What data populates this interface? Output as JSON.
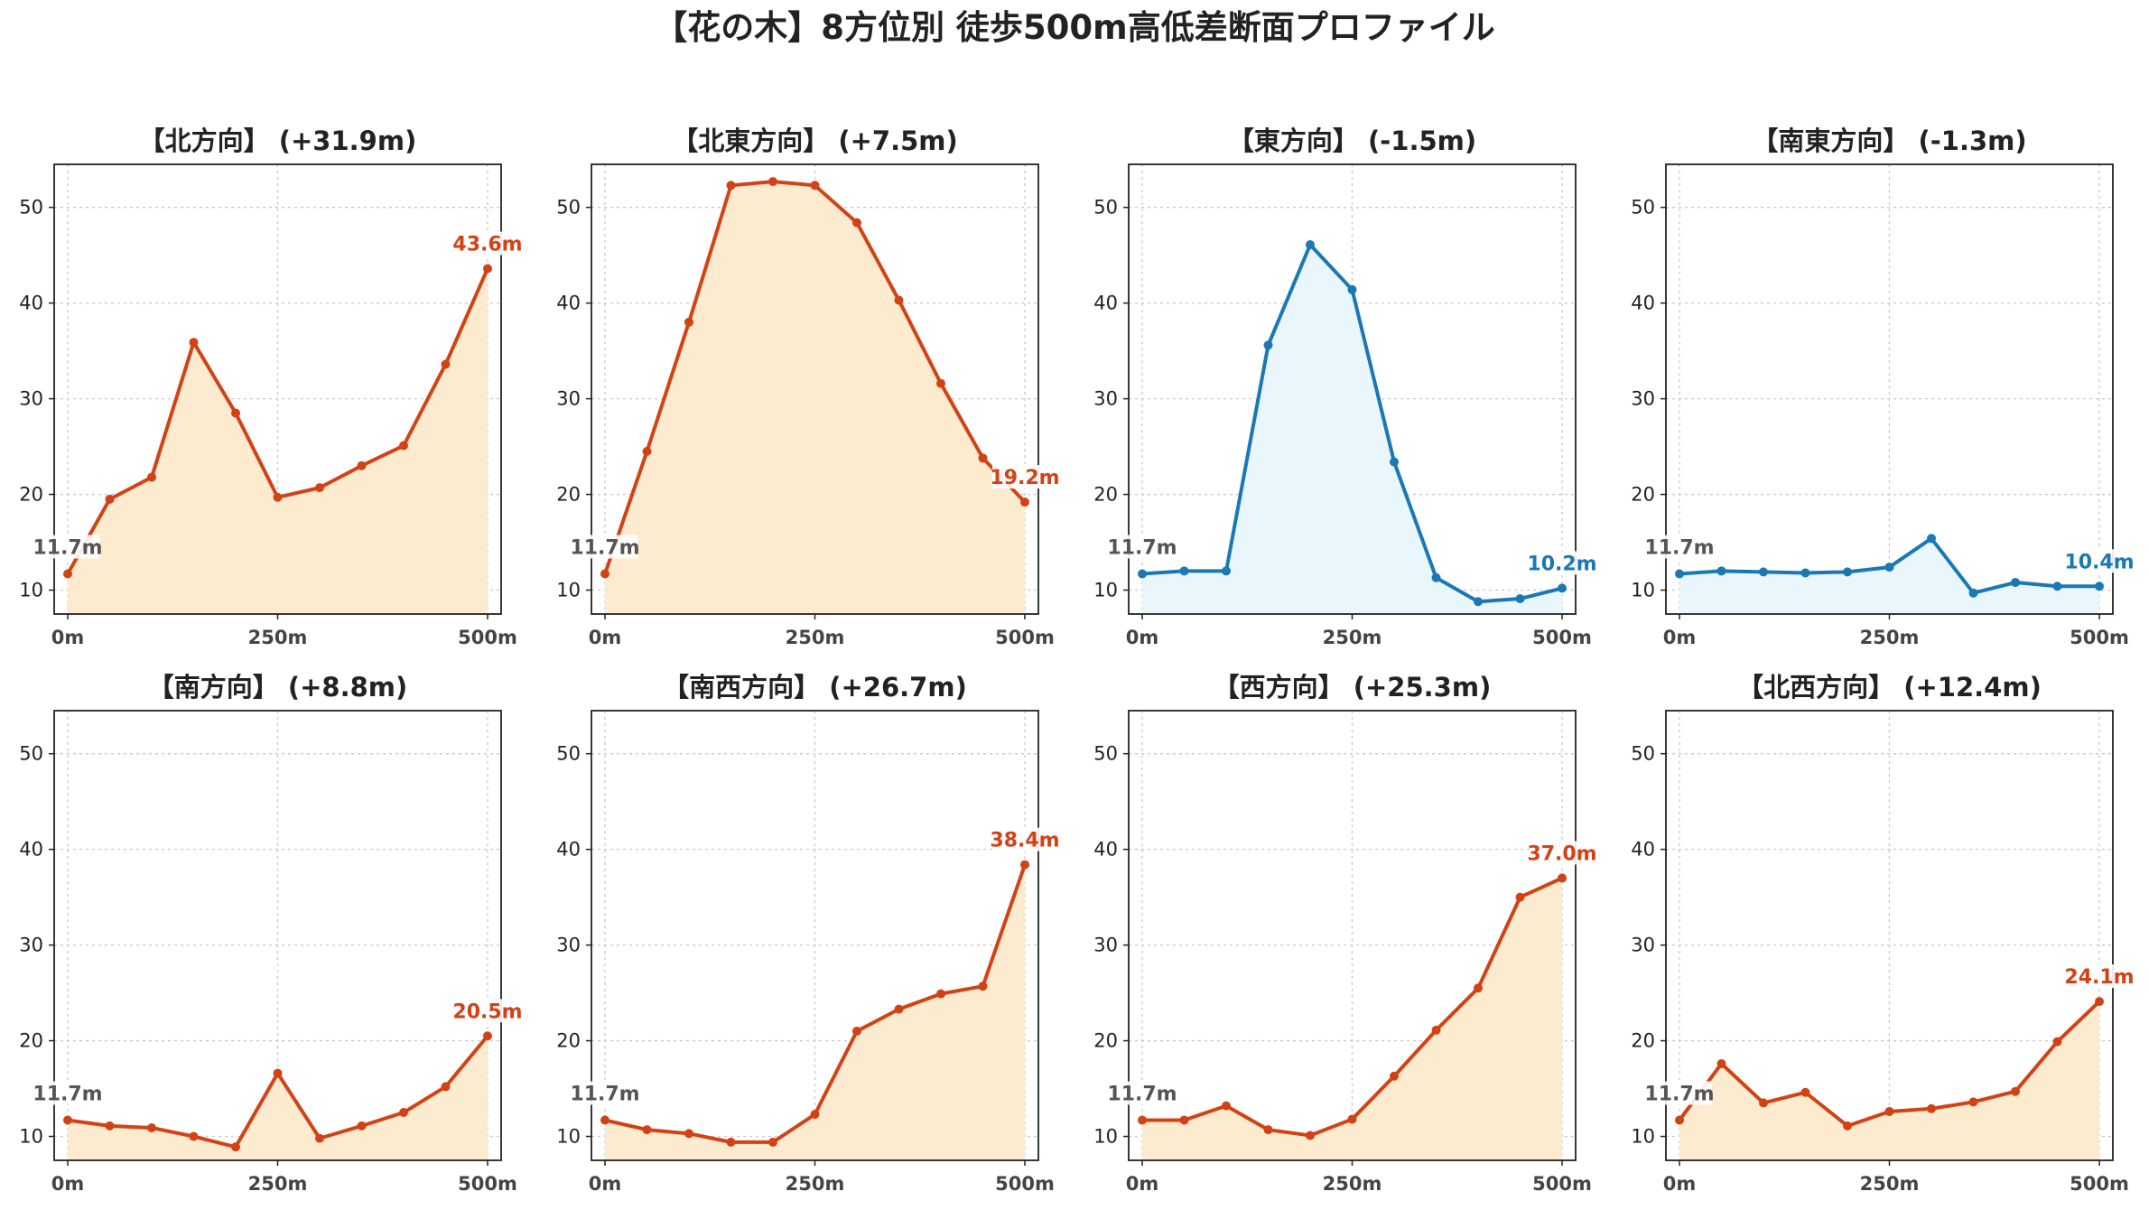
{
  "title": "【花の木】8方位別 徒歩500m高低差断面プロファイル",
  "colors": {
    "up_line": "#d24215",
    "up_fill": "#fdebd0",
    "down_line": "#1a78b5",
    "down_fill": "#e9f6fb",
    "start_label": "#555555"
  },
  "chart_data": [
    {
      "type": "area",
      "title": "【北方向】 (+31.9m)",
      "trend": "up",
      "x": [
        0,
        50,
        100,
        150,
        200,
        250,
        300,
        350,
        400,
        450,
        500
      ],
      "values": [
        11.7,
        19.5,
        21.8,
        35.9,
        28.5,
        19.7,
        20.7,
        23.0,
        25.1,
        33.6,
        43.6
      ],
      "start_label": "11.7m",
      "end_label": "43.6m",
      "ylim": [
        7.5,
        54.5
      ],
      "yticks": [
        10,
        20,
        30,
        40,
        50
      ],
      "xticks": [
        0,
        250,
        500
      ],
      "xtick_labels": [
        "0m",
        "250m",
        "500m"
      ],
      "grid": true
    },
    {
      "type": "area",
      "title": "【北東方向】 (+7.5m)",
      "trend": "up",
      "x": [
        0,
        50,
        100,
        150,
        200,
        250,
        300,
        350,
        400,
        450,
        500
      ],
      "values": [
        11.7,
        24.5,
        38.0,
        52.3,
        52.7,
        52.3,
        48.4,
        40.3,
        31.6,
        23.8,
        19.2
      ],
      "start_label": "11.7m",
      "end_label": "19.2m",
      "ylim": [
        7.5,
        54.5
      ],
      "yticks": [
        10,
        20,
        30,
        40,
        50
      ],
      "xticks": [
        0,
        250,
        500
      ],
      "xtick_labels": [
        "0m",
        "250m",
        "500m"
      ],
      "grid": true
    },
    {
      "type": "area",
      "title": "【東方向】 (-1.5m)",
      "trend": "down",
      "x": [
        0,
        50,
        100,
        150,
        200,
        250,
        300,
        350,
        400,
        450,
        500
      ],
      "values": [
        11.7,
        12.0,
        12.0,
        35.6,
        46.1,
        41.4,
        23.4,
        11.3,
        8.8,
        9.1,
        10.2
      ],
      "start_label": "11.7m",
      "end_label": "10.2m",
      "ylim": [
        7.5,
        54.5
      ],
      "yticks": [
        10,
        20,
        30,
        40,
        50
      ],
      "xticks": [
        0,
        250,
        500
      ],
      "xtick_labels": [
        "0m",
        "250m",
        "500m"
      ],
      "grid": true
    },
    {
      "type": "area",
      "title": "【南東方向】 (-1.3m)",
      "trend": "down",
      "x": [
        0,
        50,
        100,
        150,
        200,
        250,
        300,
        350,
        400,
        450,
        500
      ],
      "values": [
        11.7,
        12.0,
        11.9,
        11.8,
        11.9,
        12.4,
        15.4,
        9.7,
        10.8,
        10.4,
        10.4
      ],
      "start_label": "11.7m",
      "end_label": "10.4m",
      "ylim": [
        7.5,
        54.5
      ],
      "yticks": [
        10,
        20,
        30,
        40,
        50
      ],
      "xticks": [
        0,
        250,
        500
      ],
      "xtick_labels": [
        "0m",
        "250m",
        "500m"
      ],
      "grid": true
    },
    {
      "type": "area",
      "title": "【南方向】 (+8.8m)",
      "trend": "up",
      "x": [
        0,
        50,
        100,
        150,
        200,
        250,
        300,
        350,
        400,
        450,
        500
      ],
      "values": [
        11.7,
        11.1,
        10.9,
        10.0,
        8.9,
        16.6,
        9.8,
        11.1,
        12.5,
        15.2,
        20.5
      ],
      "start_label": "11.7m",
      "end_label": "20.5m",
      "ylim": [
        7.5,
        54.5
      ],
      "yticks": [
        10,
        20,
        30,
        40,
        50
      ],
      "xticks": [
        0,
        250,
        500
      ],
      "xtick_labels": [
        "0m",
        "250m",
        "500m"
      ],
      "grid": true
    },
    {
      "type": "area",
      "title": "【南西方向】 (+26.7m)",
      "trend": "up",
      "x": [
        0,
        50,
        100,
        150,
        200,
        250,
        300,
        350,
        400,
        450,
        500
      ],
      "values": [
        11.7,
        10.7,
        10.3,
        9.4,
        9.4,
        12.3,
        21.0,
        23.3,
        24.9,
        25.7,
        38.4
      ],
      "start_label": "11.7m",
      "end_label": "38.4m",
      "ylim": [
        7.5,
        54.5
      ],
      "yticks": [
        10,
        20,
        30,
        40,
        50
      ],
      "xticks": [
        0,
        250,
        500
      ],
      "xtick_labels": [
        "0m",
        "250m",
        "500m"
      ],
      "grid": true
    },
    {
      "type": "area",
      "title": "【西方向】 (+25.3m)",
      "trend": "up",
      "x": [
        0,
        50,
        100,
        150,
        200,
        250,
        300,
        350,
        400,
        450,
        500
      ],
      "values": [
        11.7,
        11.7,
        13.2,
        10.7,
        10.1,
        11.8,
        16.3,
        21.1,
        25.5,
        35.0,
        37.0
      ],
      "start_label": "11.7m",
      "end_label": "37.0m",
      "ylim": [
        7.5,
        54.5
      ],
      "yticks": [
        10,
        20,
        30,
        40,
        50
      ],
      "xticks": [
        0,
        250,
        500
      ],
      "xtick_labels": [
        "0m",
        "250m",
        "500m"
      ],
      "grid": true
    },
    {
      "type": "area",
      "title": "【北西方向】 (+12.4m)",
      "trend": "up",
      "x": [
        0,
        50,
        100,
        150,
        200,
        250,
        300,
        350,
        400,
        450,
        500
      ],
      "values": [
        11.7,
        17.6,
        13.5,
        14.6,
        11.1,
        12.6,
        12.9,
        13.6,
        14.7,
        19.9,
        24.1
      ],
      "start_label": "11.7m",
      "end_label": "24.1m",
      "ylim": [
        7.5,
        54.5
      ],
      "yticks": [
        10,
        20,
        30,
        40,
        50
      ],
      "xticks": [
        0,
        250,
        500
      ],
      "xtick_labels": [
        "0m",
        "250m",
        "500m"
      ],
      "grid": true
    }
  ]
}
